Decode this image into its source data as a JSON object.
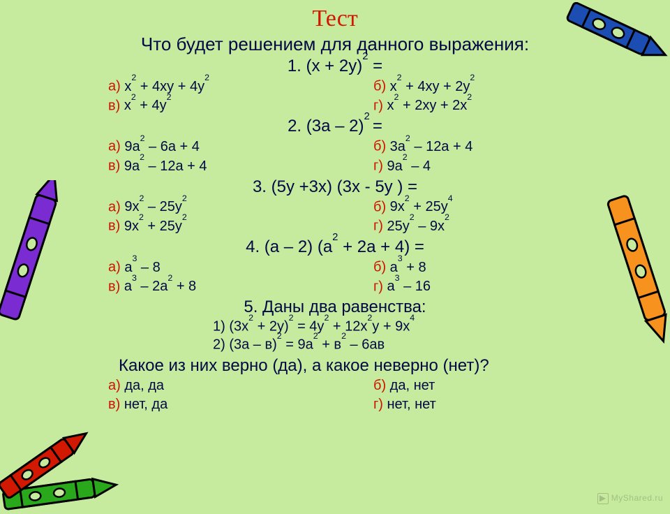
{
  "colors": {
    "background": "#c6ea9e",
    "title": "#d11800",
    "body": "#000945",
    "label": "#cc1400",
    "crayon_blue": "#1b4db3",
    "crayon_orange": "#f7921e",
    "crayon_purple": "#7a2bd1",
    "crayon_red": "#d11800",
    "crayon_green": "#2aa81b"
  },
  "title": "Тест",
  "subtitle": "Что будет решением для данного выражения:",
  "questions": [
    {
      "head_html": "1. (x + 2y)<sup>2</sup> =",
      "options": [
        {
          "l": "а)",
          "t_html": "x<sup>2</sup> + 4xy + 4y<sup>2</sup>"
        },
        {
          "l": "б)",
          "t_html": "x<sup>2</sup> + 4xy + 2y<sup>2</sup>"
        },
        {
          "l": "в)",
          "t_html": "x<sup>2</sup> + 4y<sup>2</sup>"
        },
        {
          "l": "г)",
          "t_html": "x<sup>2</sup> + 2xy + 2x<sup>2</sup>"
        }
      ]
    },
    {
      "head_html": "2. (3a – 2)<sup>2 </sup>=",
      "options": [
        {
          "l": "а)",
          "t_html": "9a<sup>2</sup> – 6a + 4"
        },
        {
          "l": "б)",
          "t_html": "3a<sup>2</sup> – 12a + 4"
        },
        {
          "l": "в)",
          "t_html": "9a<sup>2</sup> – 12a + 4"
        },
        {
          "l": "г)",
          "t_html": "9a<sup>2</sup> – 4"
        }
      ]
    },
    {
      "head_html": "3. (5y +3x) (3x - 5y ) =",
      "options": [
        {
          "l": "а)",
          "t_html": "9x<sup>2</sup> – 25y<sup>2</sup>"
        },
        {
          "l": "б)",
          "t_html": "9x<sup>2</sup> + 25y<sup>4</sup>"
        },
        {
          "l": "в)",
          "t_html": "9x<sup>2</sup> + 25y<sup>2</sup>"
        },
        {
          "l": "г)",
          "t_html": "25y<sup>2</sup> – 9x<sup>2</sup>"
        }
      ]
    },
    {
      "head_html": "4. (a – 2) (a<sup>2</sup> + 2a + 4) =",
      "options": [
        {
          "l": "а)",
          "t_html": "a<sup>3</sup> – 8"
        },
        {
          "l": "б)",
          "t_html": "a<sup>3</sup> + 8"
        },
        {
          "l": "в)",
          "t_html": "a<sup>3</sup> – 2a<sup>2</sup> + 8"
        },
        {
          "l": "г)",
          "t_html": "a<sup>3</sup> – 16"
        }
      ]
    }
  ],
  "q5": {
    "head": "5. Даны два равенства:",
    "eq1_html": "1) (3x<sup>2</sup> + 2y)<sup>2</sup> = 4y<sup>2</sup> + 12x<sup>2</sup>y + 9x<sup>4</sup>",
    "eq2_html": "2) (3а – в)<sup>2</sup> = 9а<sup>2</sup> + в<sup>2</sup> – 6ав",
    "ask": "Какое из них верно (да), а какое неверно (нет)?",
    "options": [
      {
        "l": "а)",
        "t": "да, да"
      },
      {
        "l": "б)",
        "t": "да, нет"
      },
      {
        "l": "в)",
        "t": "нет, да"
      },
      {
        "l": "г)",
        "t": "нет, нет"
      }
    ]
  },
  "watermark": "MyShared.ru"
}
